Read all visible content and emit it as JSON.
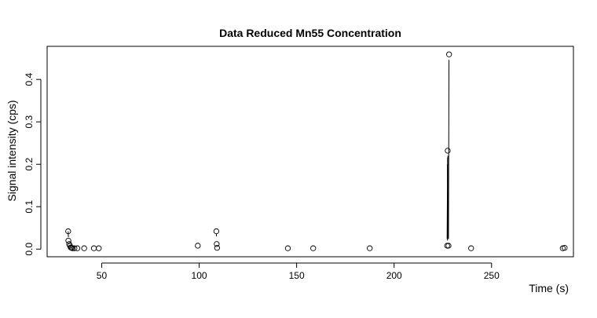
{
  "chart_data": {
    "type": "scatter",
    "title": "Data Reduced Mn55 Concentration",
    "xlabel": "Time (s)",
    "ylabel": "Signal intensity (cps)",
    "xlim": [
      22,
      292
    ],
    "ylim": [
      -0.018,
      0.478
    ],
    "xticks": [
      50,
      100,
      150,
      200,
      250
    ],
    "yticks": [
      0.0,
      0.1,
      0.2,
      0.3,
      0.4
    ],
    "xtick_labels": [
      "50",
      "100",
      "150",
      "200",
      "250"
    ],
    "ytick_labels": [
      "0.0",
      "0.1",
      "0.2",
      "0.3",
      "0.4"
    ],
    "grid": false,
    "legend": "none",
    "points": [
      {
        "x": 32.8,
        "y": 0.042
      },
      {
        "x": 32.9,
        "y": 0.02
      },
      {
        "x": 33.3,
        "y": 0.012
      },
      {
        "x": 33.7,
        "y": 0.008
      },
      {
        "x": 34.1,
        "y": 0.004
      },
      {
        "x": 34.5,
        "y": 0.003
      },
      {
        "x": 35.0,
        "y": 0.002
      },
      {
        "x": 36.0,
        "y": 0.002
      },
      {
        "x": 37.5,
        "y": 0.002
      },
      {
        "x": 41.0,
        "y": 0.002
      },
      {
        "x": 46.0,
        "y": 0.002
      },
      {
        "x": 48.5,
        "y": 0.002
      },
      {
        "x": 99.3,
        "y": 0.008
      },
      {
        "x": 108.8,
        "y": 0.042
      },
      {
        "x": 109.0,
        "y": 0.012
      },
      {
        "x": 109.2,
        "y": 0.003
      },
      {
        "x": 145.5,
        "y": 0.002
      },
      {
        "x": 158.5,
        "y": 0.002
      },
      {
        "x": 187.5,
        "y": 0.002
      },
      {
        "x": 227.2,
        "y": 0.008
      },
      {
        "x": 227.5,
        "y": 0.232
      },
      {
        "x": 227.9,
        "y": 0.008
      },
      {
        "x": 228.2,
        "y": 0.459
      },
      {
        "x": 239.5,
        "y": 0.002
      },
      {
        "x": 286.5,
        "y": 0.002
      },
      {
        "x": 287.5,
        "y": 0.003
      }
    ],
    "line_segments": [
      {
        "x1": 32.8,
        "y1": 0.042,
        "x2": 32.9,
        "y2": 0.028
      },
      {
        "x1": 108.8,
        "y1": 0.036,
        "x2": 108.9,
        "y2": 0.03
      },
      {
        "x1": 227.2,
        "y1": 0.024,
        "x2": 227.45,
        "y2": 0.216
      },
      {
        "x1": 227.5,
        "y1": 0.216,
        "x2": 227.8,
        "y2": 0.024
      },
      {
        "x1": 227.9,
        "y1": 0.024,
        "x2": 228.15,
        "y2": 0.446
      },
      {
        "x1": 227.6,
        "y1": 0.22,
        "x2": 227.4,
        "y2": 0.02
      },
      {
        "x1": 227.3,
        "y1": 0.2,
        "x2": 227.7,
        "y2": 0.03
      }
    ]
  }
}
